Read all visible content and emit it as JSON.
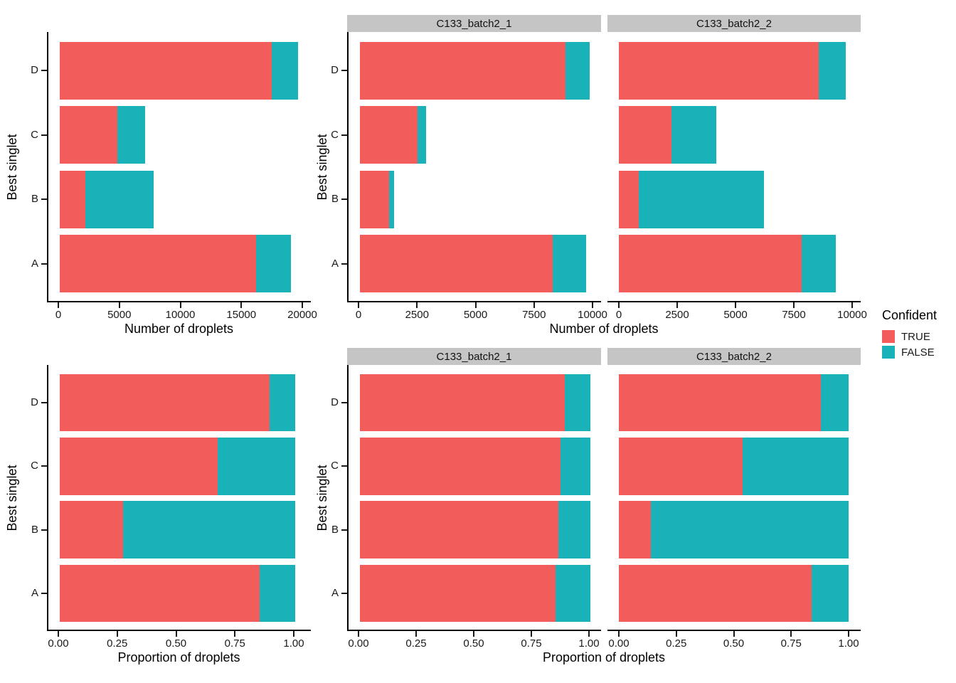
{
  "figure_background": "#ffffff",
  "colors": {
    "true_fill": "#F25D5B",
    "false_fill": "#19B2B8",
    "strip_background": "#C5C5C5",
    "axis_line": "#000000",
    "text": "#1a1a1a"
  },
  "legend": {
    "title": "Confident",
    "items": [
      {
        "label": "TRUE",
        "color": "#F25D5B"
      },
      {
        "label": "FALSE",
        "color": "#19B2B8"
      }
    ]
  },
  "chart_data": [
    {
      "id": "droplet-counts-combined",
      "type": "bar",
      "orientation": "horizontal",
      "stacked": true,
      "grid": false,
      "xlabel": "Number of droplets",
      "ylabel": "Best singlet",
      "categories": [
        "A",
        "B",
        "C",
        "D"
      ],
      "category_display_top_to_bottom": [
        "D",
        "C",
        "B",
        "A"
      ],
      "xlim": [
        0,
        20000
      ],
      "xticks": [
        0,
        5000,
        10000,
        15000,
        20000
      ],
      "xtick_labels": [
        "0",
        "5000",
        "10000",
        "15000",
        "20000"
      ],
      "facets": [
        {
          "title": null,
          "series": [
            {
              "name": "TRUE",
              "values": [
                16080,
                2100,
                4720,
                17360
              ]
            },
            {
              "name": "FALSE",
              "values": [
                2885,
                5570,
                2290,
                2180
              ]
            }
          ]
        }
      ]
    },
    {
      "id": "droplet-counts-by-sample",
      "type": "bar",
      "orientation": "horizontal",
      "stacked": true,
      "grid": false,
      "xlabel": "Number of droplets",
      "ylabel": "Best singlet",
      "categories": [
        "A",
        "B",
        "C",
        "D"
      ],
      "category_display_top_to_bottom": [
        "D",
        "C",
        "B",
        "A"
      ],
      "xlim": [
        0,
        10000
      ],
      "xticks": [
        0,
        2500,
        5000,
        7500,
        10000
      ],
      "xtick_labels": [
        "0",
        "2500",
        "5000",
        "7500",
        "10000"
      ],
      "facets": [
        {
          "title": "C133_batch2_1",
          "series": [
            {
              "name": "TRUE",
              "values": [
                8230,
                1250,
                2450,
                8780
              ]
            },
            {
              "name": "FALSE",
              "values": [
                1430,
                210,
                380,
                1030
              ]
            }
          ]
        },
        {
          "title": "C133_batch2_2",
          "series": [
            {
              "name": "TRUE",
              "values": [
                7850,
                850,
                2270,
                8580
              ]
            },
            {
              "name": "FALSE",
              "values": [
                1455,
                5360,
                1910,
                1150
              ]
            }
          ]
        }
      ]
    },
    {
      "id": "droplet-proportions-combined",
      "type": "bar",
      "orientation": "horizontal",
      "stacked": true,
      "grid": false,
      "xlabel": "Proportion of droplets",
      "ylabel": "Best singlet",
      "categories": [
        "A",
        "B",
        "C",
        "D"
      ],
      "category_display_top_to_bottom": [
        "D",
        "C",
        "B",
        "A"
      ],
      "xlim": [
        0,
        1
      ],
      "xticks": [
        0,
        0.25,
        0.5,
        0.75,
        1
      ],
      "xtick_labels": [
        "0.00",
        "0.25",
        "0.50",
        "0.75",
        "1.00"
      ],
      "facets": [
        {
          "title": null,
          "series": [
            {
              "name": "TRUE",
              "values": [
                0.85,
                0.27,
                0.67,
                0.89
              ]
            },
            {
              "name": "FALSE",
              "values": [
                0.15,
                0.73,
                0.33,
                0.11
              ]
            }
          ]
        }
      ]
    },
    {
      "id": "droplet-proportions-by-sample",
      "type": "bar",
      "orientation": "horizontal",
      "stacked": true,
      "grid": false,
      "xlabel": "Proportion of droplets",
      "ylabel": "Best singlet",
      "categories": [
        "A",
        "B",
        "C",
        "D"
      ],
      "category_display_top_to_bottom": [
        "D",
        "C",
        "B",
        "A"
      ],
      "xlim": [
        0,
        1
      ],
      "xticks": [
        0,
        0.25,
        0.5,
        0.75,
        1
      ],
      "xtick_labels": [
        "0.00",
        "0.25",
        "0.50",
        "0.75",
        "1.00"
      ],
      "facets": [
        {
          "title": "C133_batch2_1",
          "series": [
            {
              "name": "TRUE",
              "values": [
                0.85,
                0.86,
                0.87,
                0.89
              ]
            },
            {
              "name": "FALSE",
              "values": [
                0.15,
                0.14,
                0.13,
                0.11
              ]
            }
          ]
        },
        {
          "title": "C133_batch2_2",
          "series": [
            {
              "name": "TRUE",
              "values": [
                0.84,
                0.14,
                0.54,
                0.88
              ]
            },
            {
              "name": "FALSE",
              "values": [
                0.16,
                0.86,
                0.46,
                0.12
              ]
            }
          ]
        }
      ]
    }
  ]
}
